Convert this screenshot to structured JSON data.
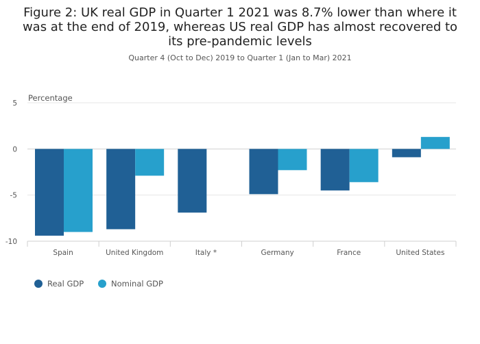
{
  "title": "Figure 2: UK real GDP in Quarter 1 2021 was 8.7% lower than where it was at the end of 2019, whereas US real GDP has almost recovered to its pre-pandemic levels",
  "subtitle": "Quarter 4 (Oct to Dec) 2019 to Quarter 1 (Jan to Mar) 2021",
  "colors": {
    "real": "#206095",
    "nominal": "#27a0cc"
  },
  "chart_data": {
    "type": "bar",
    "title": "Figure 2: UK real GDP in Quarter 1 2021 was 8.7% lower than where it was at the end of 2019, whereas US real GDP has almost recovered to its pre-pandemic levels",
    "subtitle": "Quarter 4 (Oct to Dec) 2019 to Quarter 1 (Jan to Mar) 2021",
    "xlabel": "",
    "ylabel": "Percentage",
    "ylim": [
      -10,
      5
    ],
    "yticks": [
      5,
      0,
      -5,
      -10
    ],
    "grid": true,
    "legend_position": "bottom-left",
    "categories": [
      "Spain",
      "United Kingdom",
      "Italy *",
      "Germany",
      "France",
      "United States"
    ],
    "series": [
      {
        "name": "Real GDP",
        "values": [
          -9.4,
          -8.7,
          -6.9,
          -4.9,
          -4.5,
          -0.9
        ]
      },
      {
        "name": "Nominal GDP",
        "values": [
          -9.0,
          -2.9,
          null,
          -2.3,
          -3.6,
          1.3
        ]
      }
    ]
  }
}
